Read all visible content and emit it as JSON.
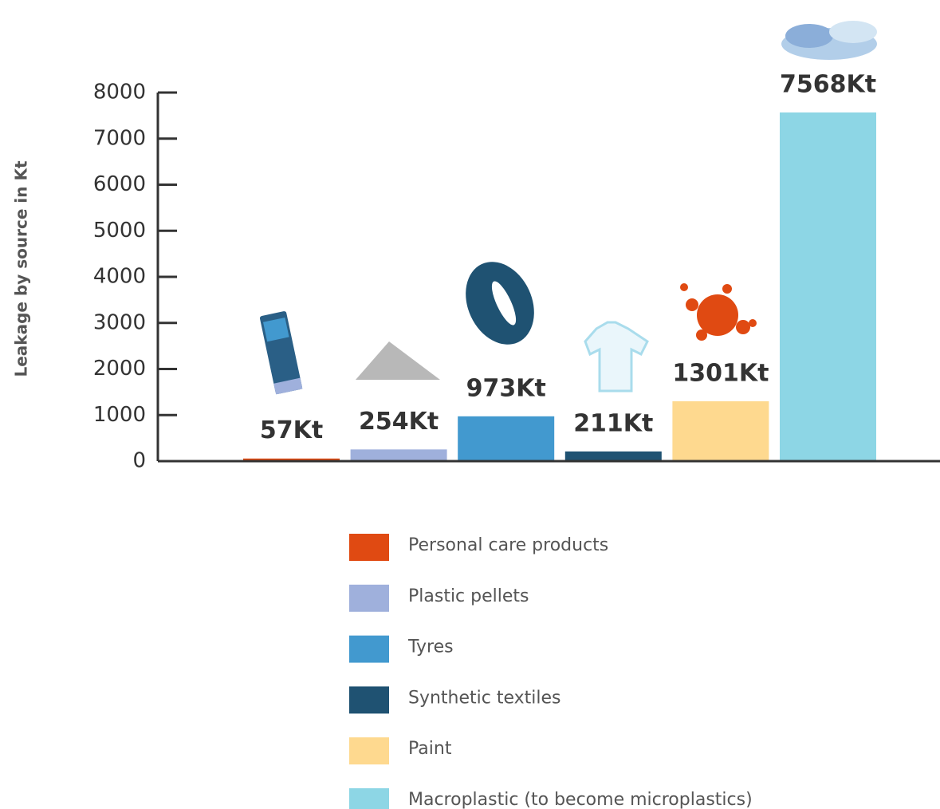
{
  "chart_data": {
    "type": "bar",
    "ylabel": "Leakage by source in Kt",
    "categories": [
      "Personal care products",
      "Plastic pellets",
      "Tyres",
      "Synthetic textiles",
      "Paint",
      "Macroplastic (to become microplastics)"
    ],
    "values": [
      57,
      254,
      973,
      211,
      1301,
      7568
    ],
    "value_labels": [
      "57Kt",
      "254Kt",
      "973Kt",
      "211Kt",
      "1301Kt",
      "7568Kt"
    ],
    "colors": [
      "#e04a12",
      "#9fb0dc",
      "#4299cf",
      "#1f5272",
      "#fed98f",
      "#8dd6e5"
    ],
    "ylim": [
      0,
      8000
    ],
    "yticks": [
      0,
      1000,
      2000,
      3000,
      4000,
      5000,
      6000,
      7000,
      8000
    ]
  }
}
